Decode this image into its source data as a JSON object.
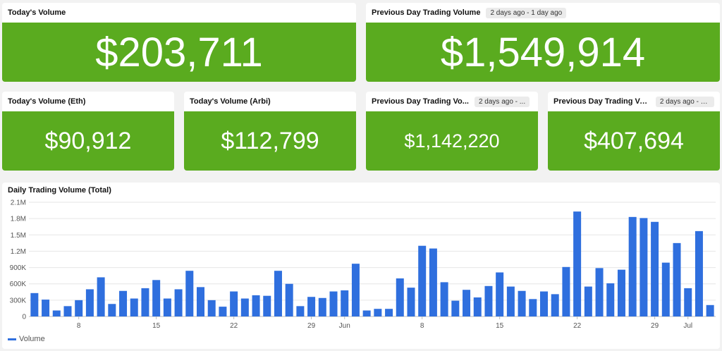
{
  "cards": {
    "todays_volume": {
      "title": "Today's Volume",
      "value": "$203,711"
    },
    "prev_day_volume": {
      "title": "Previous Day Trading Volume",
      "badge": "2 days ago - 1 day ago",
      "value": "$1,549,914"
    },
    "todays_volume_eth": {
      "title": "Today's Volume (Eth)",
      "value": "$90,912"
    },
    "todays_volume_arbi": {
      "title": "Today's Volume (Arbi)",
      "value": "$112,799"
    },
    "prev_day_volume_eth": {
      "title": "Previous Day Trading Vo...",
      "badge": "2 days ago - ...",
      "value": "$1,142,220"
    },
    "prev_day_volume_arbi": {
      "title": "Previous Day Trading Vo...",
      "badge": "2 days ago - 1...",
      "value": "$407,694"
    }
  },
  "colors": {
    "tile_green": "#5aab1f",
    "bar_blue": "#2f6fde"
  },
  "chart_data": {
    "type": "bar",
    "title": "Daily Trading Volume (Total)",
    "x_tick_labels": [
      "8",
      "15",
      "22",
      "29",
      "Jun",
      "8",
      "15",
      "22",
      "29",
      "Jul"
    ],
    "x_tick_indices": [
      4,
      11,
      18,
      25,
      28,
      35,
      42,
      49,
      56,
      59
    ],
    "y_tick_labels": [
      "0",
      "300K",
      "600K",
      "900K",
      "1.2M",
      "1.5M",
      "1.8M",
      "2.1M"
    ],
    "ylim": [
      0,
      2100000
    ],
    "grid": true,
    "legend_position": "bottom-left",
    "series": [
      {
        "name": "Volume",
        "values": [
          430000,
          310000,
          110000,
          190000,
          300000,
          500000,
          720000,
          230000,
          470000,
          330000,
          520000,
          670000,
          330000,
          500000,
          840000,
          540000,
          300000,
          180000,
          460000,
          330000,
          390000,
          380000,
          840000,
          600000,
          190000,
          360000,
          340000,
          460000,
          480000,
          970000,
          110000,
          140000,
          140000,
          700000,
          530000,
          1300000,
          1250000,
          630000,
          290000,
          490000,
          350000,
          560000,
          810000,
          550000,
          470000,
          320000,
          460000,
          410000,
          910000,
          1930000,
          550000,
          890000,
          610000,
          860000,
          1830000,
          1810000,
          1740000,
          990000,
          1350000,
          520000,
          1570000,
          210000
        ]
      }
    ]
  }
}
